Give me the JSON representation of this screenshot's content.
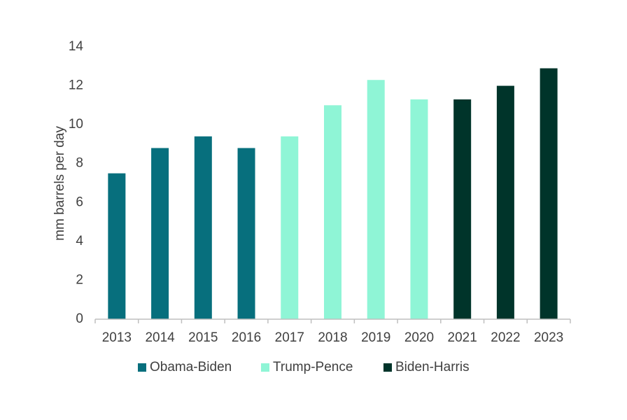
{
  "chart_data": {
    "type": "bar",
    "categories": [
      "2013",
      "2014",
      "2015",
      "2016",
      "2017",
      "2018",
      "2019",
      "2020",
      "2021",
      "2022",
      "2023"
    ],
    "values": [
      7.5,
      8.8,
      9.4,
      8.8,
      9.4,
      11.0,
      12.3,
      11.3,
      11.3,
      12.0,
      12.9
    ],
    "series_index": [
      0,
      0,
      0,
      0,
      1,
      1,
      1,
      1,
      2,
      2,
      2
    ],
    "series": [
      {
        "name": "Obama-Biden",
        "color": "#076f7d"
      },
      {
        "name": "Trump-Pence",
        "color": "#8ff5d6"
      },
      {
        "name": "Biden-Harris",
        "color": "#00342a"
      }
    ],
    "title": "",
    "xlabel": "",
    "ylabel": "mm barrels per day",
    "ylim": [
      0,
      14
    ],
    "yticks": [
      "0",
      "2",
      "4",
      "6",
      "8",
      "10",
      "12",
      "14"
    ],
    "grid": false,
    "legend_position": "bottom"
  }
}
